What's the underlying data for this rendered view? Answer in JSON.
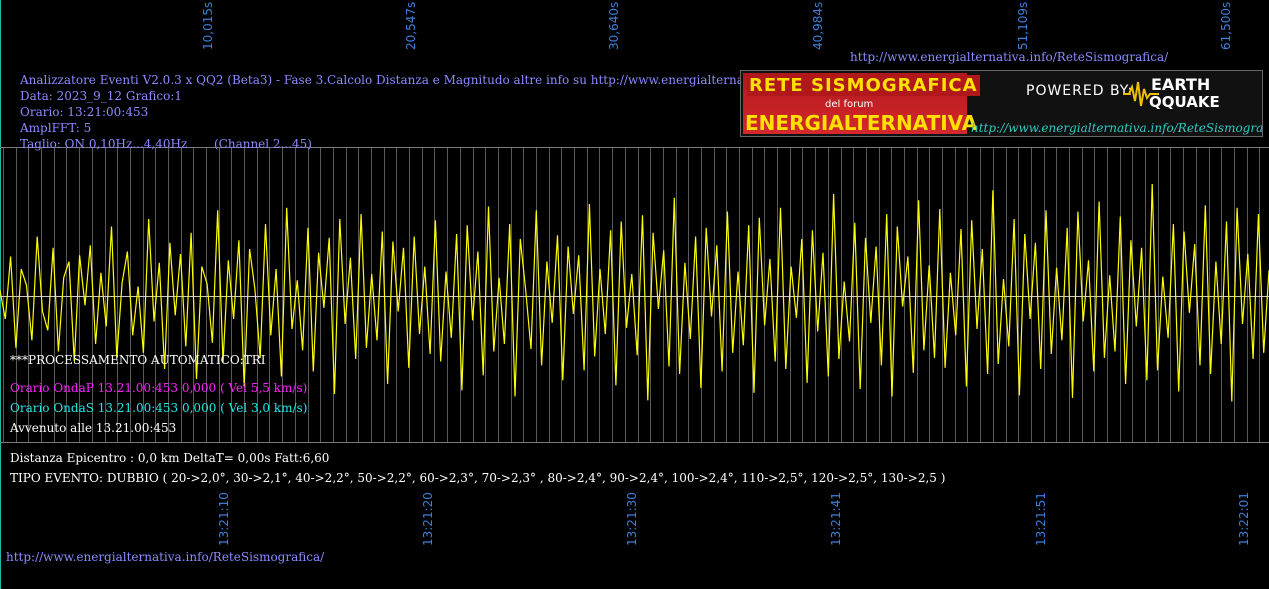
{
  "top_time_labels": [
    "10,015s",
    "20,547s",
    "30,640s",
    "40,984s",
    "51,109s",
    "61,500s"
  ],
  "bottom_time_labels": [
    "13:21:10",
    "13:21:20",
    "13:21:30",
    "13:21:41",
    "13:21:51",
    "13:22:01"
  ],
  "header_url": "http://www.energialternativa.info/ReteSismografica/",
  "info": {
    "line1": "Analizzatore Eventi V2.0.3 x QQ2 (Beta3) - Fase 3.Calcolo Distanza e Magnitudo altre info su http://www.energialternativa.info/ReteSism",
    "line2": "Data: 2023_9_12 Grafico:1",
    "line3": "Orario: 13:21:00:453",
    "line4": "AmplFFT: 5",
    "line5": "Taglio: ON 0,10Hz...4,40Hz       (Channel 2...45)"
  },
  "logo": {
    "title": "RETE SISMOGRAFICA",
    "subtitle": "del forum",
    "brand": "ENERGIALTERNATIVA",
    "powered_by": "POWERED BY:",
    "earth": "EARTH",
    "quake": "QQUAKE",
    "url": "http://www.energialternativa.info/ReteSismografica"
  },
  "processing": {
    "auto": "***PROCESSAMENTO AUTOMATICO:TRI",
    "onda_p": "Orario OndaP 13.21.00:453  0,000 ( Vel 5,5 km/s)",
    "onda_s": "Orario OndaS 13.21.00:453  0,000 ( Vel 3,0 km/s)",
    "avvenuto": "Avvenuto alle 13.21.00:453"
  },
  "results": {
    "distanza": "Distanza Epicentro : 0,0 km DeltaT= 0,00s  Fatt:6,60",
    "tipo": "TIPO EVENTO: DUBBIO ( 20->2,0°, 30->2,1°, 40->2,2°, 50->2,2°, 60->2,3°, 70->2,3° , 80->2,4°, 90->2,4°, 100->2,4°, 110->2,5°, 120->2,5°, 130->2,5 )"
  },
  "footer_url": "http://www.energialternativa.info/ReteSismografica/",
  "colors": {
    "background": "#000000",
    "trace": "#ffff00",
    "grid": "#5a5a5a",
    "time_labels": "#3f7fd8",
    "info_text": "#8b8bff",
    "onda_p": "#ff22ff",
    "onda_s": "#22e8e8",
    "white_text": "#ffffff"
  },
  "chart_data": {
    "type": "line",
    "series": [
      {
        "values": [
          0.05,
          -0.18,
          0.32,
          -0.41,
          0.22,
          0.09,
          -0.35,
          0.48,
          -0.12,
          -0.27,
          0.39,
          -0.44,
          0.15,
          0.28,
          -0.52,
          0.33,
          -0.07,
          0.41,
          -0.38,
          0.19,
          -0.24,
          0.56,
          -0.49,
          0.11,
          0.36,
          -0.31,
          0.08,
          -0.45,
          0.62,
          -0.2,
          0.27,
          -0.58,
          0.43,
          -0.15,
          0.34,
          -0.4,
          0.51,
          -0.66,
          0.24,
          0.1,
          -0.37,
          0.69,
          -0.53,
          0.29,
          -0.18,
          0.45,
          -0.72,
          0.38,
          0.06,
          -0.49,
          0.58,
          -0.31,
          0.22,
          -0.64,
          0.71,
          -0.26,
          0.13,
          -0.43,
          0.55,
          -0.6,
          0.35,
          -0.09,
          0.47,
          -0.78,
          0.62,
          -0.22,
          0.31,
          -0.5,
          0.66,
          -0.41,
          0.18,
          -0.35,
          0.52,
          -0.7,
          0.44,
          -0.12,
          0.39,
          -0.57,
          0.48,
          -0.3,
          0.24,
          -0.46,
          0.61,
          -0.52,
          0.2,
          -0.33,
          0.5,
          -0.75,
          0.57,
          -0.19,
          0.36,
          -0.63,
          0.72,
          -0.44,
          0.15,
          -0.38,
          0.58,
          -0.8,
          0.46,
          0.05,
          -0.42,
          0.69,
          -0.55,
          0.28,
          -0.21,
          0.49,
          -0.67,
          0.4,
          -0.14,
          0.33,
          -0.59,
          0.74,
          -0.48,
          0.22,
          -0.3,
          0.53,
          -0.71,
          0.6,
          -0.25,
          0.18,
          -0.47,
          0.65,
          -0.83,
          0.51,
          -0.1,
          0.37,
          -0.56,
          0.79,
          -0.62,
          0.27,
          -0.34,
          0.48,
          -0.73,
          0.55,
          -0.16,
          0.41,
          -0.6,
          0.68,
          -0.45,
          0.2,
          -0.39,
          0.57,
          -0.77,
          0.63,
          -0.23,
          0.3,
          -0.52,
          0.71,
          -0.58,
          0.24,
          -0.17,
          0.46,
          -0.69,
          0.53,
          -0.28,
          0.35,
          -0.64,
          0.82,
          -0.5,
          0.12,
          -0.36,
          0.59,
          -0.74,
          0.47,
          -0.21,
          0.4,
          -0.55,
          0.66,
          -0.8,
          0.56,
          -0.08,
          0.32,
          -0.61,
          0.77,
          -0.43,
          0.25,
          -0.49,
          0.7,
          -0.57,
          0.19,
          -0.31,
          0.54,
          -0.72,
          0.61,
          -0.26,
          0.38,
          -0.62,
          0.85,
          -0.54,
          0.14,
          -0.4,
          0.62,
          -0.79,
          0.5,
          -0.18,
          0.43,
          -0.58,
          0.69,
          -0.46,
          0.23,
          -0.35,
          0.55,
          -0.81,
          0.68,
          -0.2,
          0.29,
          -0.6,
          0.76,
          -0.49,
          0.17,
          -0.44,
          0.64,
          -0.7,
          0.45,
          -0.24,
          0.39,
          -0.67,
          0.9,
          -0.59,
          0.16,
          -0.33,
          0.58,
          -0.76,
          0.52,
          -0.13,
          0.42,
          -0.55,
          0.73,
          -0.62,
          0.28,
          -0.38,
          0.6,
          -0.84,
          0.71,
          -0.22,
          0.34,
          -0.5,
          0.66,
          -0.45,
          0.21
        ]
      }
    ],
    "ylim": [
      -1,
      1
    ],
    "grid": true,
    "vertical_gridlines": 100
  }
}
